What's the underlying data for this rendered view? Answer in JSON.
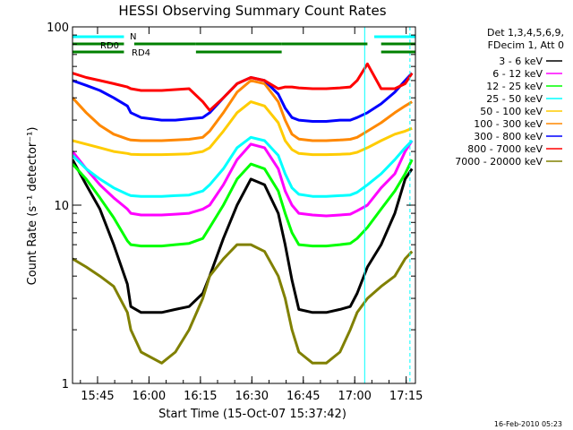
{
  "chart_data": {
    "type": "line",
    "title": "HESSI Observing Summary Count Rates",
    "xlabel": "Start Time (15-Oct-07 15:37:42)",
    "ylabel": "Count Rate (s⁻¹ detector⁻¹)",
    "x_unit": "minutes after 15:37:42 UT",
    "xlim": [
      0,
      100
    ],
    "ylim": [
      1,
      100
    ],
    "y_scale": "log",
    "x_ticks": [
      {
        "label": "15:45",
        "x": 7.3
      },
      {
        "label": "16:00",
        "x": 22.3
      },
      {
        "label": "16:15",
        "x": 37.3
      },
      {
        "label": "16:30",
        "x": 52.3
      },
      {
        "label": "16:45",
        "x": 67.3
      },
      {
        "label": "17:00",
        "x": 82.3
      },
      {
        "label": "17:15",
        "x": 97.3
      }
    ],
    "y_ticks": [
      {
        "label": "1",
        "y": 1
      },
      {
        "label": "10",
        "y": 10
      },
      {
        "label": "100",
        "y": 100
      }
    ],
    "legend_title": [
      "Det 1,3,4,5,6,9,",
      "FDecim 1, Att 0"
    ],
    "legend_position": "right",
    "footer": "16-Feb-2010 05:23",
    "series": [
      {
        "name": "3 - 6 keV",
        "color": "#000000",
        "x": [
          0,
          4,
          8,
          12,
          16,
          17,
          20,
          26,
          30,
          34,
          38,
          40,
          44,
          48,
          52,
          56,
          60,
          62,
          64,
          66,
          70,
          74,
          78,
          81,
          83,
          86,
          90,
          94,
          97,
          99
        ],
        "y": [
          18,
          13,
          9.5,
          6,
          3.6,
          2.7,
          2.5,
          2.5,
          2.6,
          2.7,
          3.2,
          4,
          6.5,
          10,
          14,
          13,
          9,
          6,
          3.8,
          2.6,
          2.5,
          2.5,
          2.6,
          2.7,
          3.2,
          4.5,
          6,
          9,
          14,
          16
        ]
      },
      {
        "name": "6 - 12 keV",
        "color": "#ff00ff",
        "x": [
          0,
          4,
          8,
          12,
          16,
          17,
          20,
          26,
          30,
          34,
          38,
          40,
          44,
          48,
          52,
          56,
          60,
          62,
          64,
          66,
          70,
          74,
          78,
          81,
          83,
          86,
          90,
          94,
          97,
          99
        ],
        "y": [
          20,
          16,
          13,
          11,
          9.5,
          9,
          8.8,
          8.8,
          8.9,
          9,
          9.5,
          10,
          13,
          18,
          22,
          21,
          16,
          12,
          10,
          9,
          8.8,
          8.7,
          8.8,
          8.9,
          9.3,
          10,
          12.5,
          15,
          20,
          23
        ]
      },
      {
        "name": "12 - 25 keV",
        "color": "#00ff00",
        "x": [
          0,
          4,
          8,
          12,
          16,
          17,
          20,
          26,
          30,
          34,
          38,
          40,
          44,
          48,
          52,
          56,
          60,
          62,
          64,
          66,
          70,
          74,
          78,
          81,
          83,
          86,
          90,
          94,
          97,
          99
        ],
        "y": [
          17,
          14,
          11,
          8.5,
          6.3,
          6,
          5.9,
          5.9,
          6,
          6.1,
          6.5,
          7.5,
          10,
          14,
          17,
          16,
          12,
          9,
          7,
          6,
          5.9,
          5.9,
          6,
          6.1,
          6.5,
          7.5,
          9.5,
          12,
          15,
          18
        ]
      },
      {
        "name": "25 - 50 keV",
        "color": "#00ffff",
        "x": [
          0,
          4,
          8,
          12,
          16,
          17,
          20,
          26,
          30,
          34,
          38,
          40,
          44,
          48,
          52,
          56,
          60,
          62,
          64,
          66,
          70,
          74,
          78,
          81,
          83,
          86,
          90,
          94,
          97,
          99
        ],
        "y": [
          19,
          16,
          14,
          12.5,
          11.5,
          11.3,
          11.2,
          11.2,
          11.3,
          11.4,
          12,
          13,
          16,
          21,
          24,
          23,
          19,
          15,
          12.5,
          11.5,
          11.2,
          11.2,
          11.3,
          11.4,
          11.8,
          13,
          15,
          18,
          21,
          23
        ]
      },
      {
        "name": "50 - 100 keV",
        "color": "#ffcc00",
        "x": [
          0,
          4,
          8,
          12,
          16,
          17,
          20,
          26,
          30,
          34,
          38,
          40,
          44,
          48,
          52,
          56,
          60,
          62,
          64,
          66,
          70,
          74,
          78,
          81,
          83,
          86,
          90,
          94,
          97,
          99
        ],
        "y": [
          23,
          22,
          21,
          20,
          19.5,
          19.3,
          19.2,
          19.2,
          19.3,
          19.4,
          20,
          21,
          26,
          33,
          38,
          36,
          29,
          23,
          20.5,
          19.5,
          19.2,
          19.2,
          19.3,
          19.4,
          19.8,
          21,
          23,
          25,
          26,
          27
        ]
      },
      {
        "name": "100 - 300 keV",
        "color": "#ff8800",
        "x": [
          0,
          4,
          8,
          12,
          16,
          17,
          20,
          26,
          30,
          34,
          38,
          40,
          44,
          48,
          52,
          56,
          60,
          62,
          64,
          66,
          70,
          74,
          78,
          81,
          83,
          86,
          90,
          94,
          97,
          99
        ],
        "y": [
          40,
          33,
          28,
          25,
          23.5,
          23.2,
          23,
          23,
          23.2,
          23.4,
          24,
          26,
          33,
          43,
          50,
          48,
          38,
          30,
          25,
          23.5,
          23,
          23,
          23.2,
          23.4,
          24,
          26,
          29,
          33,
          36,
          38
        ]
      },
      {
        "name": "300 - 800 keV",
        "color": "#0000ff",
        "x": [
          0,
          4,
          8,
          12,
          16,
          17,
          20,
          26,
          30,
          34,
          38,
          40,
          44,
          48,
          52,
          56,
          60,
          62,
          64,
          66,
          70,
          74,
          78,
          81,
          83,
          86,
          90,
          94,
          97,
          99
        ],
        "y": [
          50,
          47,
          44,
          40,
          36,
          33,
          31,
          30,
          30,
          30.5,
          31,
          33,
          40,
          48,
          52,
          50,
          42,
          35,
          31,
          30,
          29.5,
          29.5,
          30,
          30,
          31,
          33,
          37,
          43,
          50,
          55
        ]
      },
      {
        "name": "800 - 7000 keV",
        "color": "#ff0000",
        "x": [
          0,
          4,
          8,
          12,
          16,
          17,
          20,
          26,
          30,
          34,
          38,
          40,
          44,
          48,
          52,
          56,
          60,
          62,
          64,
          66,
          70,
          74,
          78,
          81,
          83,
          86,
          90,
          94,
          97,
          99
        ],
        "y": [
          55,
          52,
          50,
          48,
          46,
          45,
          44,
          44,
          44.5,
          45,
          38,
          34,
          40,
          48,
          52,
          50,
          45,
          46,
          46,
          45.5,
          45,
          45,
          45.5,
          46,
          50,
          62,
          45,
          45,
          48,
          55
        ]
      },
      {
        "name": "7000 - 20000 keV",
        "color": "#808000",
        "x": [
          0,
          4,
          8,
          12,
          16,
          17,
          20,
          26,
          30,
          34,
          38,
          40,
          44,
          48,
          52,
          56,
          60,
          62,
          64,
          66,
          70,
          74,
          78,
          81,
          83,
          86,
          90,
          94,
          97,
          99
        ],
        "y": [
          5,
          4.5,
          4,
          3.5,
          2.5,
          2,
          1.5,
          1.3,
          1.5,
          2,
          3,
          4,
          5,
          6,
          6,
          5.5,
          4,
          3,
          2,
          1.5,
          1.3,
          1.3,
          1.5,
          2,
          2.5,
          3,
          3.5,
          4,
          5,
          5.5
        ]
      }
    ],
    "attenuator_bars": [
      {
        "label": "N",
        "color": "#00ffff",
        "segments": [
          [
            0,
            15
          ],
          [
            88,
            100
          ]
        ]
      },
      {
        "label": "RD0",
        "color": "#008000",
        "segments": [
          [
            0,
            15
          ],
          [
            18,
            36
          ],
          [
            36,
            61
          ],
          [
            61,
            86
          ],
          [
            90,
            100
          ]
        ]
      },
      {
        "label": "RD4",
        "color": "#008000",
        "segments": [
          [
            0,
            15
          ],
          [
            36,
            61
          ],
          [
            90,
            100
          ]
        ]
      }
    ],
    "vertical_markers": [
      {
        "x": 0,
        "color": "#00ffff",
        "style": "solid"
      },
      {
        "x": 85.2,
        "color": "#00ffff",
        "style": "solid"
      },
      {
        "x": 98.4,
        "color": "#00ffff",
        "style": "dashed"
      }
    ]
  }
}
